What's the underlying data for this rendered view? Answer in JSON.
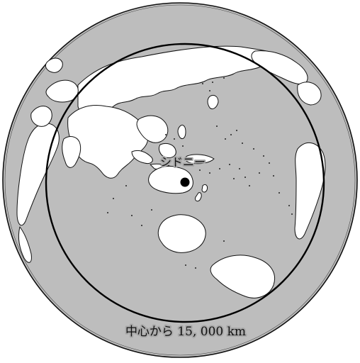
{
  "map": {
    "projection": "azimuthal equidistant",
    "center_label": "シドニー",
    "range_label": "中心から 15, 000 km",
    "colors": {
      "ocean": "#bdbdbd",
      "land": "#ffffff",
      "outline": "#111111",
      "range_circle": "#000000",
      "center_marker": "#000000"
    }
  }
}
